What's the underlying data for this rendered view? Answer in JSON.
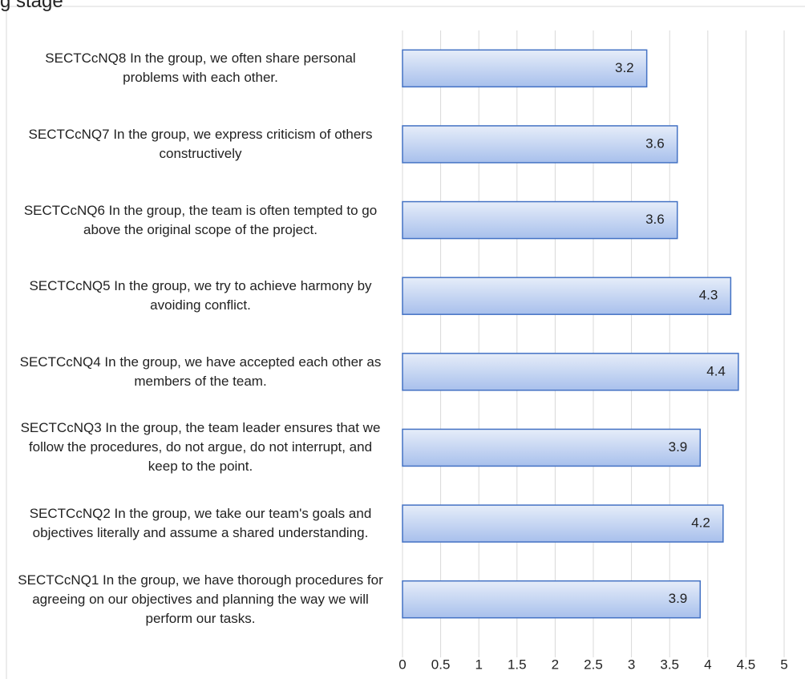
{
  "chart_data": {
    "type": "bar",
    "orientation": "horizontal",
    "title": "g stage",
    "categories": [
      "SECTCcNQ8 In the group, we often share personal problems with each other.",
      "SECTCcNQ7 In the group, we express criticism of others constructively",
      "SECTCcNQ6 In the group, the team is often tempted to go above the original scope of the project.",
      "SECTCcNQ5 In the group, we try to achieve harmony by avoiding conflict.",
      "SECTCcNQ4 In the group, we have accepted each other as members of the team.",
      "SECTCcNQ3 In the group, the team leader ensures that we follow the procedures, do not argue, do not interrupt, and keep to the point.",
      "SECTCcNQ2 In the group, we take our team's goals and objectives literally and assume a shared understanding.",
      "SECTCcNQ1 In the group, we have thorough procedures for agreeing on our objectives and planning the way we will perform our tasks."
    ],
    "values": [
      3.2,
      3.6,
      3.6,
      4.3,
      4.4,
      3.9,
      4.2,
      3.9
    ],
    "color": "#4472c4",
    "xlim": [
      0,
      5
    ],
    "xticks": [
      0,
      0.5,
      1,
      1.5,
      2,
      2.5,
      3,
      3.5,
      4,
      4.5,
      5
    ],
    "grid": true
  }
}
